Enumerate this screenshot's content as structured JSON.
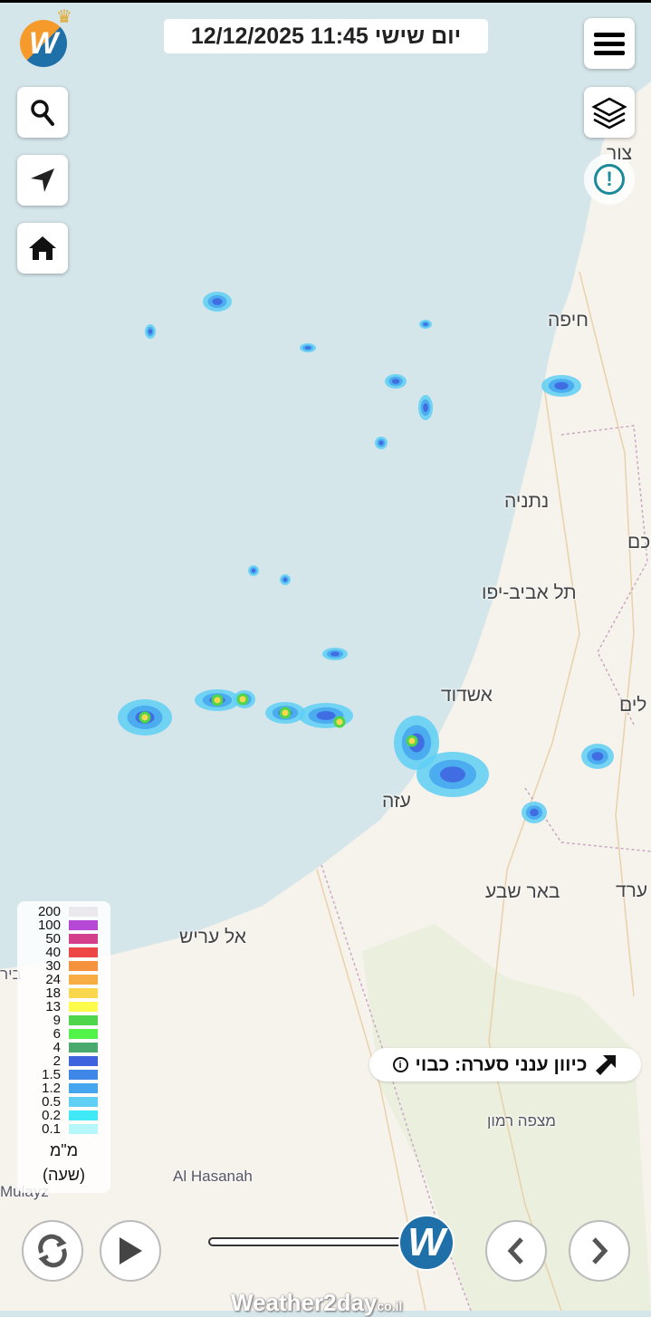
{
  "header": {
    "datetime": "12/12/2025 11:45 יום שישי"
  },
  "buttons": {
    "menu": "menu-icon",
    "layers": "layers-icon",
    "alert": "alert-icon",
    "search": "search-icon",
    "locate": "navigation-arrow-icon",
    "home": "home-icon"
  },
  "cities": [
    {
      "name": "צור"
    },
    {
      "name": "חיפה"
    },
    {
      "name": "נתניה"
    },
    {
      "name": "כם"
    },
    {
      "name": "תל אביב-יפו"
    },
    {
      "name": "אשדוד"
    },
    {
      "name": "לים"
    },
    {
      "name": "עזה"
    },
    {
      "name": "באר שבע"
    },
    {
      "name": "ערד"
    },
    {
      "name": "אל עריש"
    },
    {
      "name": "ביר"
    },
    {
      "name": "מצפה רמון"
    },
    {
      "name": "Al Hasanah"
    },
    {
      "name": "Mulayz"
    }
  ],
  "legend": {
    "items": [
      {
        "value": "200",
        "color": "#ebe9ee"
      },
      {
        "value": "100",
        "color": "#b648d6"
      },
      {
        "value": "50",
        "color": "#d43f8c"
      },
      {
        "value": "40",
        "color": "#ee4646"
      },
      {
        "value": "30",
        "color": "#f5923e"
      },
      {
        "value": "24",
        "color": "#f8ad44"
      },
      {
        "value": "18",
        "color": "#fbd74d"
      },
      {
        "value": "13",
        "color": "#fdfb4b"
      },
      {
        "value": "9",
        "color": "#4fd54b"
      },
      {
        "value": "6",
        "color": "#52f44a"
      },
      {
        "value": "4",
        "color": "#4aa96c"
      },
      {
        "value": "2",
        "color": "#3f62df"
      },
      {
        "value": "1.5",
        "color": "#3f86e9"
      },
      {
        "value": "1.2",
        "color": "#45a5ef"
      },
      {
        "value": "0.5",
        "color": "#5fcff4"
      },
      {
        "value": "0.2",
        "color": "#3fe9f6"
      },
      {
        "value": "0.1",
        "color": "#b5f7fa"
      }
    ],
    "unit": "מ\"מ",
    "period": "(שעה)"
  },
  "storm_direction": {
    "label": "כיוון ענני סערה: כבוי",
    "info_icon": "info-icon",
    "arrow_icon": "arrow-up-right-icon"
  },
  "controls": {
    "refresh": "refresh-icon",
    "play": "play-icon",
    "prev": "chevron-left-icon",
    "next": "chevron-right-icon",
    "knob_letter": "W"
  },
  "brand": {
    "name": "Weather2day",
    "suffix": "co.il"
  },
  "colors": {
    "sea": "#d5e6ea",
    "land": "#f6f2ec",
    "accent": "#1f6fa8",
    "orange": "#f59a2b"
  }
}
